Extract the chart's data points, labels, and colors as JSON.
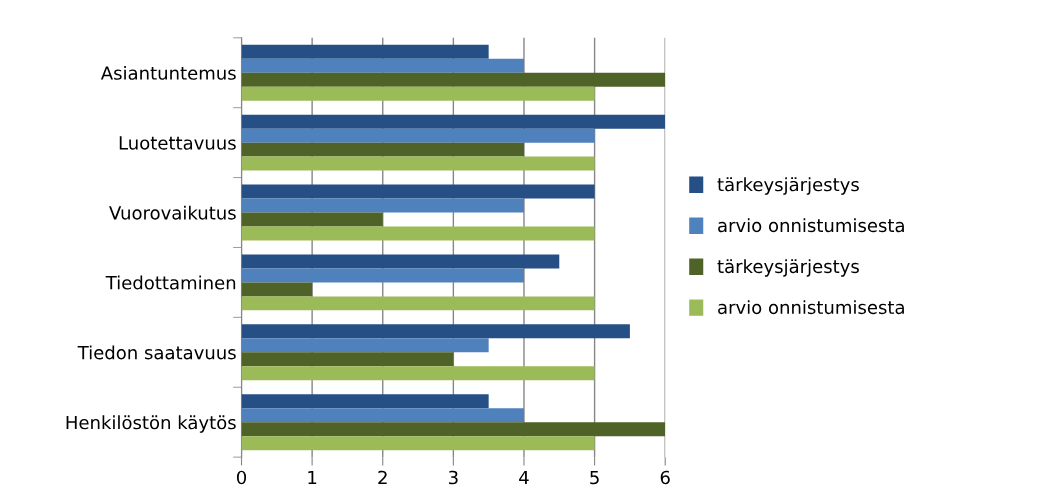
{
  "chart_data": {
    "type": "bar",
    "orientation": "horizontal",
    "categories": [
      "Asiantuntemus",
      "Luotettavuus",
      "Vuorovaikutus",
      "Tiedottaminen",
      "Tiedon saatavuus",
      "Henkilöstön käytös"
    ],
    "series": [
      {
        "name": "tärkeysjärjestys",
        "color": "#254f85",
        "values": [
          3.5,
          6,
          5,
          4.5,
          5.5,
          3.5
        ]
      },
      {
        "name": "arvio onnistumisesta",
        "color": "#4f81bd",
        "values": [
          4,
          5,
          4,
          4,
          3.5,
          4
        ]
      },
      {
        "name": "tärkeysjärjestys",
        "color": "#4f6228",
        "values": [
          6,
          4,
          2,
          1,
          3,
          6
        ]
      },
      {
        "name": "arvio onnistumisesta",
        "color": "#9bbb59",
        "values": [
          5,
          5,
          5,
          5,
          5,
          5
        ]
      }
    ],
    "xlim": [
      0,
      6
    ],
    "xticks": [
      0,
      1,
      2,
      3,
      4,
      5,
      6
    ],
    "grid": "x",
    "legend": "right"
  }
}
